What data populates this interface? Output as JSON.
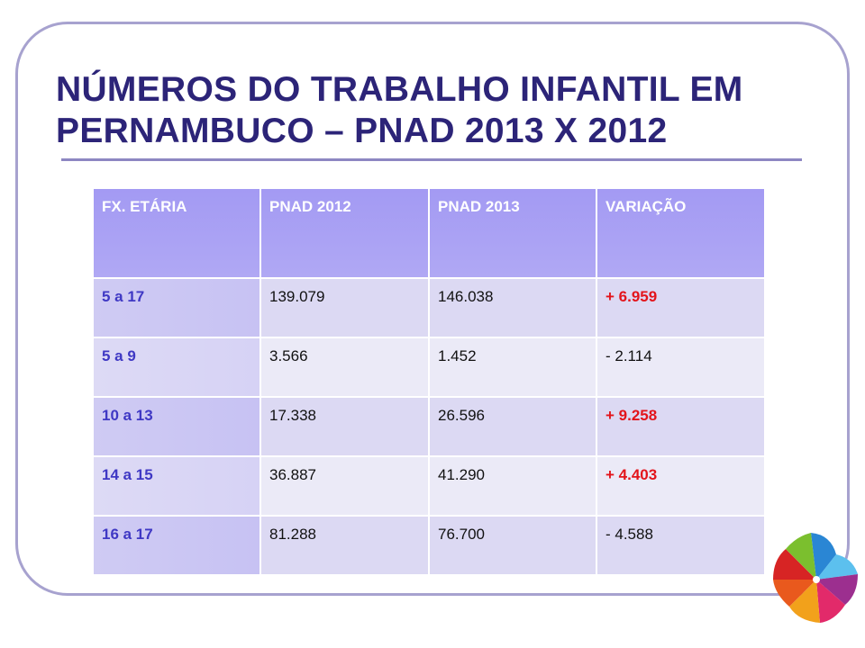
{
  "slide": {
    "title_line1": "NÚMEROS DO TRABALHO INFANTIL EM",
    "title_line2": "PERNAMBUCO – PNAD 2013 X 2012"
  },
  "table": {
    "headers": [
      "FX. ETÁRIA",
      "PNAD 2012",
      "PNAD 2013",
      "VARIAÇÃO"
    ],
    "rows": [
      {
        "age": "5 a 17",
        "pnad2012": "139.079",
        "pnad2013": "146.038",
        "variation": "+ 6.959"
      },
      {
        "age": "5 a 9",
        "pnad2012": "3.566",
        "pnad2013": "1.452",
        "variation": "- 2.114"
      },
      {
        "age": "10 a 13",
        "pnad2012": "17.338",
        "pnad2013": "26.596",
        "variation": "+ 9.258"
      },
      {
        "age": "14 a 15",
        "pnad2012": "36.887",
        "pnad2013": "41.290",
        "variation": "+ 4.403"
      },
      {
        "age": "16 a 17",
        "pnad2012": "81.288",
        "pnad2013": "76.700",
        "variation": "- 4.588"
      }
    ]
  },
  "colors": {
    "title": "#2c2478",
    "header_bg": "#a39af3",
    "age_text": "#3f38c4",
    "positive_variation": "#e3141b",
    "frame": "#a7a2cf"
  },
  "logo": {
    "icon": "pinwheel-icon"
  }
}
